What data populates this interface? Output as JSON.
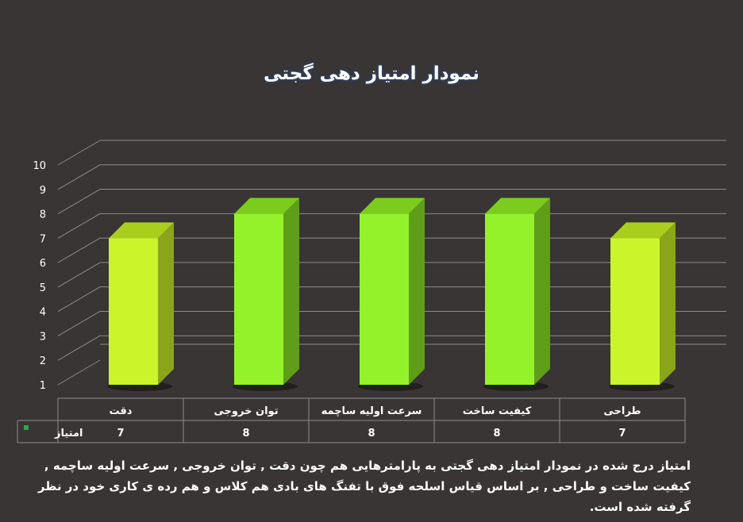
{
  "chart_data": {
    "type": "bar",
    "title": "نمودار امتیاز دهی گجتی",
    "categories": [
      "دقت",
      "توان خروجی",
      "سرعت اولیه ساچمه",
      "کیفیت ساخت",
      "طراحی"
    ],
    "series": [
      {
        "name": "امتیاز",
        "values": [
          7,
          8,
          8,
          8,
          7
        ]
      }
    ],
    "table_values": [
      "7",
      "8",
      "8",
      "8",
      "7"
    ],
    "y_ticks": [
      "1",
      "2",
      "3",
      "4",
      "5",
      "6",
      "7",
      "8",
      "9",
      "10"
    ],
    "ylim": [
      1,
      10
    ],
    "grid": true,
    "legend": "data-table",
    "colors": {
      "bar_light": "#c9f52a",
      "bar_light_side": "#8aa51a",
      "bar_light_top": "#a9cf1c",
      "bar_bright": "#94f22a",
      "bar_bright_side": "#5f9e18",
      "bar_bright_top": "#7ccc1e",
      "legend_key": "#2ea44a"
    }
  },
  "caption": "امتیاز درج شده در نمودار امتیاز دهی گجتی  به پارامترهایی هم چون دقت , توان خروجی , سرعت اولیه ساچمه , کیفیت ساخت و طراحی , بر اساس قیاس اسلحه فوق با تفنگ های بادی هم کلاس و هم رده ی کاری خود در نظر گرفته شده است."
}
